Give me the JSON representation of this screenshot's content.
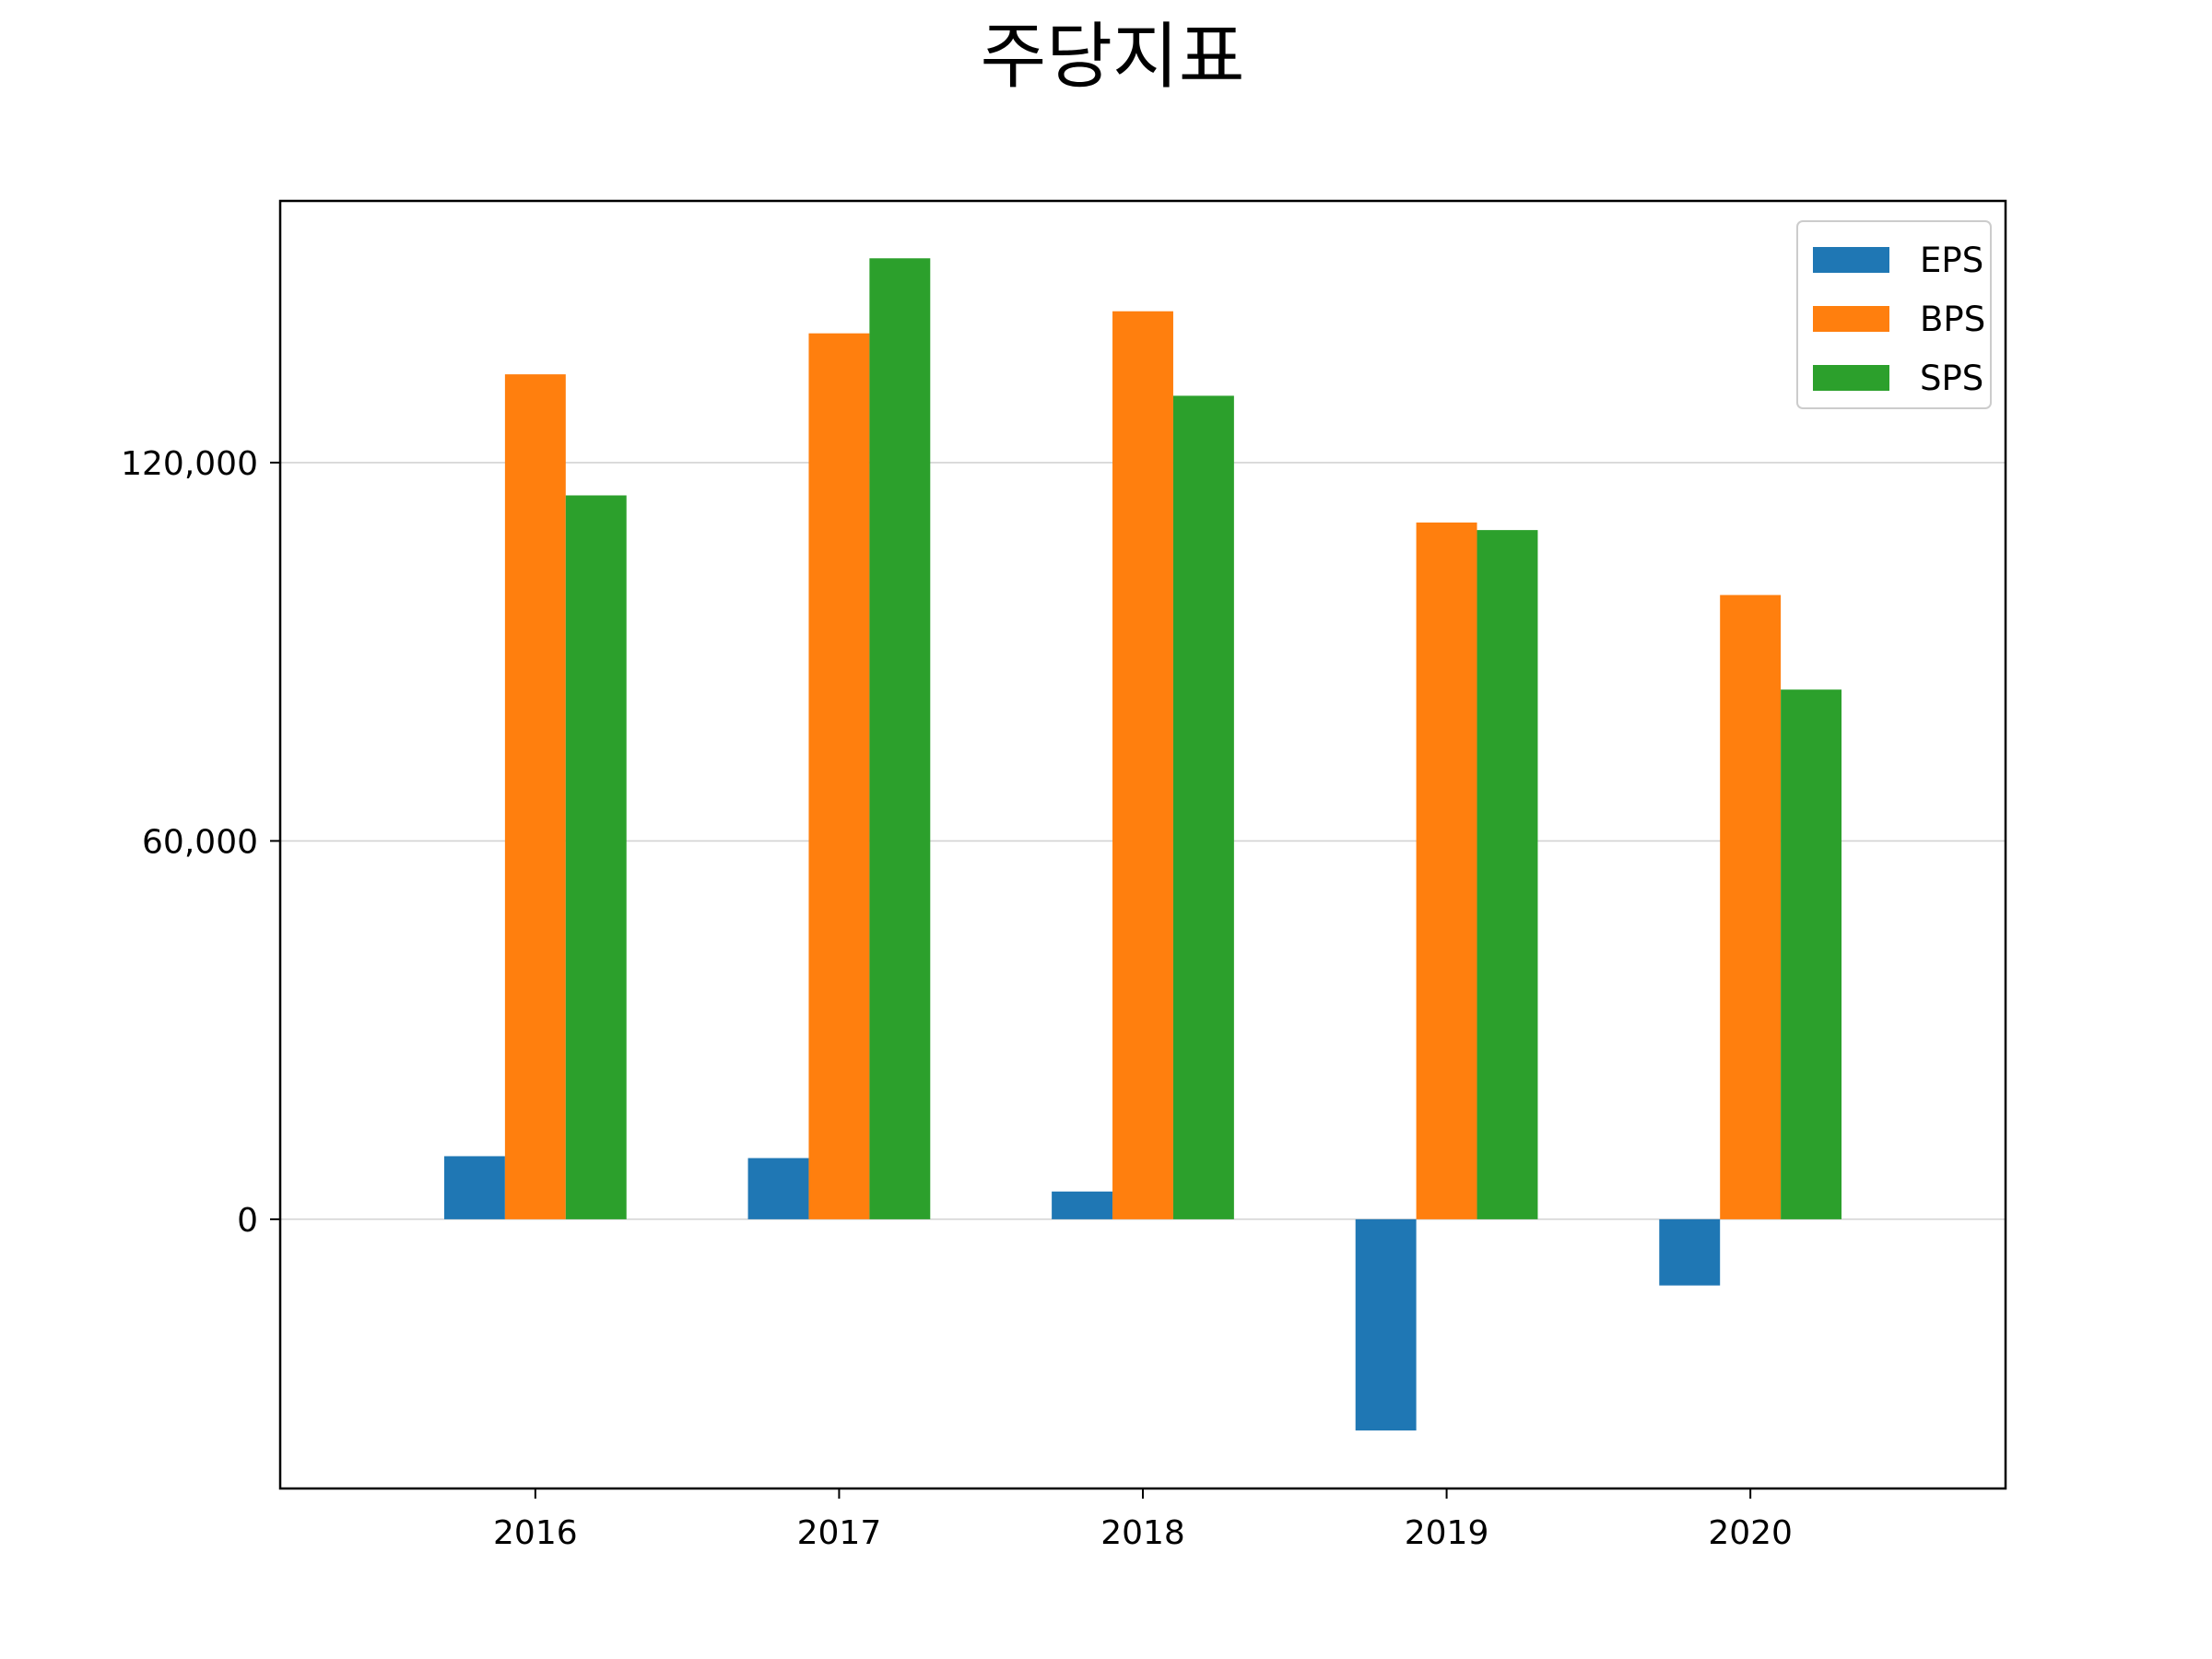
{
  "chart_data": {
    "type": "bar",
    "title": "주당지표",
    "xlabel": "",
    "ylabel": "",
    "categories": [
      "2016",
      "2017",
      "2018",
      "2019",
      "2020"
    ],
    "series": [
      {
        "name": "EPS",
        "color": "#1f77b4",
        "values": [
          10000,
          9700,
          4400,
          -33500,
          -10500
        ]
      },
      {
        "name": "BPS",
        "color": "#ff7f0e",
        "values": [
          134000,
          140500,
          144000,
          110500,
          99000
        ]
      },
      {
        "name": "SPS",
        "color": "#2ca02c",
        "values": [
          114800,
          152400,
          130600,
          109300,
          84000
        ]
      }
    ],
    "ylim": [
      -42700,
      161500
    ],
    "yticks": [
      0,
      60000,
      120000
    ],
    "ytick_labels": [
      "0",
      "60,000",
      "120,000"
    ],
    "grid": "horizontal",
    "legend_position": "top-right"
  }
}
